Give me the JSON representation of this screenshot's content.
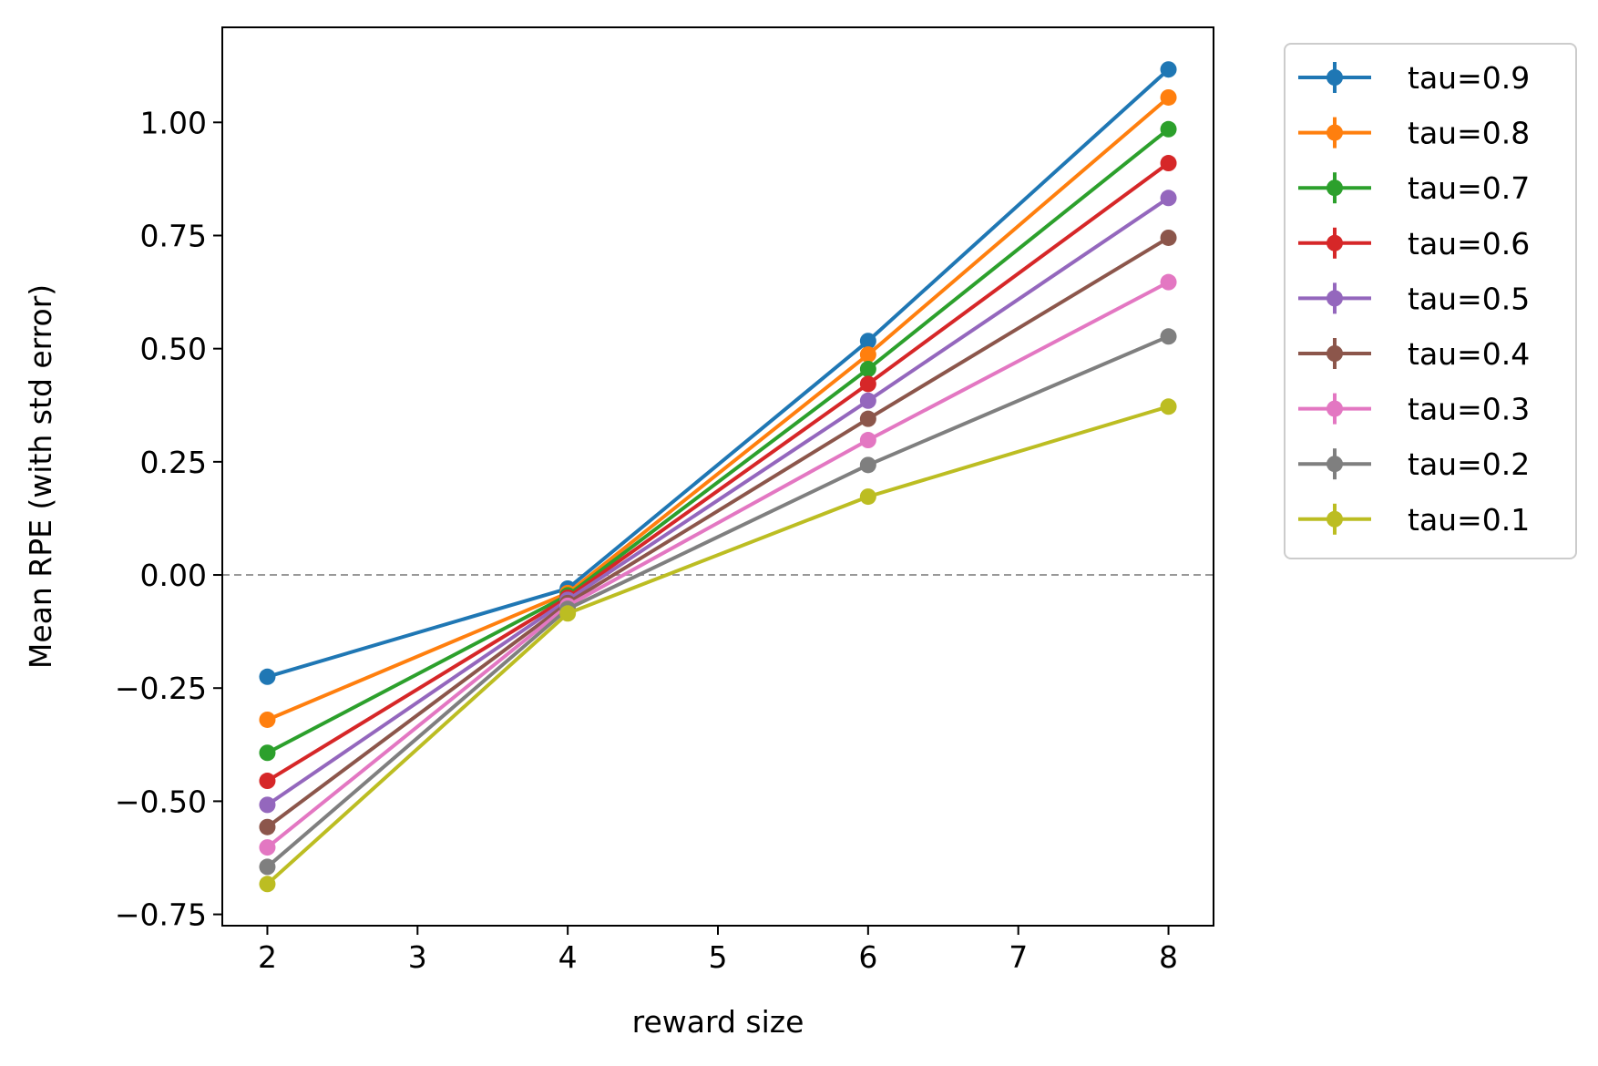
{
  "chart_data": {
    "type": "line",
    "title": "",
    "xlabel": "reward size",
    "ylabel": "Mean RPE (with std error)",
    "xlim": [
      1.7,
      8.3
    ],
    "ylim": [
      -0.775,
      1.21
    ],
    "x": [
      2,
      4,
      6,
      8
    ],
    "xticks": [
      2,
      3,
      4,
      5,
      6,
      7,
      8
    ],
    "yticks": [
      -0.75,
      -0.5,
      -0.25,
      0.0,
      0.25,
      0.5,
      0.75,
      1.0
    ],
    "xtick_labels": [
      "2",
      "3",
      "4",
      "5",
      "6",
      "7",
      "8"
    ],
    "ytick_labels": [
      "−0.75",
      "−0.50",
      "−0.25",
      "0.00",
      "0.25",
      "0.50",
      "0.75",
      "1.00"
    ],
    "reference_line": {
      "y": 0.0,
      "style": "dashed",
      "color": "#999999"
    },
    "legend_position": "outside-right-top",
    "series": [
      {
        "name": "tau=0.9",
        "color": "#1f77b4",
        "values": [
          -0.225,
          -0.03,
          0.517,
          1.117
        ]
      },
      {
        "name": "tau=0.8",
        "color": "#ff7f0e",
        "values": [
          -0.32,
          -0.04,
          0.487,
          1.055
        ]
      },
      {
        "name": "tau=0.7",
        "color": "#2ca02c",
        "values": [
          -0.393,
          -0.045,
          0.455,
          0.985
        ]
      },
      {
        "name": "tau=0.6",
        "color": "#d62728",
        "values": [
          -0.455,
          -0.05,
          0.422,
          0.91
        ]
      },
      {
        "name": "tau=0.5",
        "color": "#9467bd",
        "values": [
          -0.508,
          -0.055,
          0.385,
          0.833
        ]
      },
      {
        "name": "tau=0.4",
        "color": "#8c564b",
        "values": [
          -0.557,
          -0.062,
          0.345,
          0.745
        ]
      },
      {
        "name": "tau=0.3",
        "color": "#e377c2",
        "values": [
          -0.602,
          -0.068,
          0.298,
          0.647
        ]
      },
      {
        "name": "tau=0.2",
        "color": "#7f7f7f",
        "values": [
          -0.645,
          -0.075,
          0.243,
          0.527
        ]
      },
      {
        "name": "tau=0.1",
        "color": "#bcbd22",
        "values": [
          -0.683,
          -0.085,
          0.173,
          0.372
        ]
      }
    ]
  }
}
